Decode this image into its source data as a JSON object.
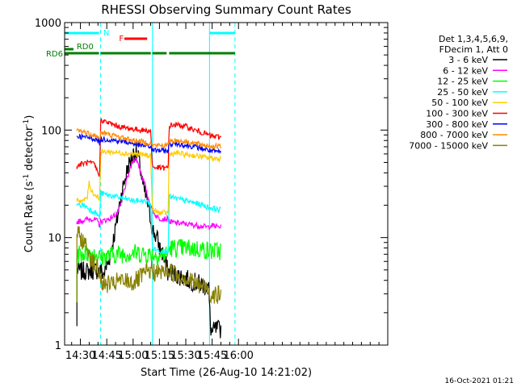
{
  "chart_data": {
    "type": "line",
    "title": "RHESSI Observing Summary Count Rates",
    "xlabel": "Start Time (26-Aug-10 14:21:02)",
    "ylabel": "Count Rate (s",
    "ylabel_sup": "-1",
    "ylabel_tail": " detector",
    "ylabel_tail_sup": "-1",
    "ylabel_close": ")",
    "yscale": "log",
    "ylim": [
      1,
      1000
    ],
    "y_ticks": [
      "1",
      "10",
      "100",
      "1000"
    ],
    "xlim_min": [
      21,
      205
    ],
    "x_ticks": [
      {
        "label": "14:30",
        "min": 30
      },
      {
        "label": "14:45",
        "min": 45
      },
      {
        "label": "15:00",
        "min": 60
      },
      {
        "label": "15:15",
        "min": 75
      },
      {
        "label": "15:30",
        "min": 90
      },
      {
        "label": "15:45",
        "min": 105
      },
      {
        "label": "16:00",
        "min": 120
      }
    ],
    "legend_header": [
      "Det 1,3,4,5,6,9,",
      "FDecim 1, Att 0"
    ],
    "legend_position": "right",
    "timestamp": "16-Oct-2021 01:21",
    "grid": false,
    "series": [
      {
        "name": "3 - 6 keV",
        "color": "#000000",
        "x": [
          28,
          31,
          33,
          34,
          36,
          38,
          40,
          41,
          41.5,
          43,
          46,
          49,
          51,
          53,
          55,
          57,
          59,
          60,
          61,
          62,
          63,
          64,
          65,
          66,
          68,
          69,
          70,
          71,
          72,
          74,
          75,
          76,
          77,
          78,
          79,
          80,
          80.5,
          84,
          88,
          92,
          96,
          100,
          103,
          104,
          105,
          107,
          110
        ],
        "y": [
          5,
          4.8,
          5,
          4.8,
          5,
          4.9,
          5,
          4.8,
          5,
          4.5,
          6,
          10,
          15,
          24,
          33,
          45,
          55,
          60,
          62,
          60,
          55,
          45,
          35,
          28,
          22,
          18,
          15,
          12,
          11,
          9.5,
          8,
          7.5,
          7,
          6,
          5.5,
          4.5,
          5,
          4.5,
          4.3,
          4,
          3.8,
          3.6,
          3.5,
          1.5,
          1.3,
          1.4,
          1.4
        ]
      },
      {
        "name": "6 - 12 keV",
        "color": "#ff00ff",
        "x": [
          28,
          32,
          36,
          39,
          40,
          41,
          41.5,
          44,
          47,
          49,
          51,
          53,
          54,
          56,
          58,
          60,
          61,
          62,
          63,
          65,
          67,
          68,
          70,
          71,
          72,
          73,
          74,
          75,
          80,
          80.5,
          88,
          96,
          103,
          104,
          110
        ],
        "y": [
          14,
          14.5,
          15,
          14.5,
          14,
          13,
          14,
          14.5,
          15,
          16,
          17,
          20,
          24,
          32,
          42,
          52,
          55,
          53,
          48,
          38,
          30,
          25,
          20,
          18,
          17,
          16,
          15.5,
          15,
          15,
          14,
          13.5,
          13,
          12.5,
          13,
          12.5
        ]
      },
      {
        "name": "12 - 25 keV",
        "color": "#00ff00",
        "x": [
          28,
          34,
          40,
          41,
          41.5,
          50,
          60,
          70,
          75,
          80,
          80.5,
          90,
          100,
          103,
          104,
          110
        ],
        "y": [
          7,
          7.2,
          7,
          6.5,
          6.5,
          7,
          7.2,
          7,
          6.8,
          7,
          8,
          8,
          7.8,
          7.5,
          7.5,
          7.5
        ]
      },
      {
        "name": "25 - 50 keV",
        "color": "#00ffff",
        "x": [
          28,
          32,
          34,
          36,
          39,
          40,
          41,
          41.5,
          45,
          50,
          55,
          60,
          65,
          70,
          71,
          75,
          80,
          80.5,
          85,
          90,
          95,
          100,
          103,
          104,
          110
        ],
        "y": [
          20,
          20,
          19,
          18,
          17,
          16,
          15,
          26,
          25,
          24,
          23,
          22,
          22,
          21,
          8,
          7.5,
          7.5,
          24,
          23,
          22,
          21,
          20,
          19,
          19,
          18
        ]
      },
      {
        "name": "50 - 100 keV",
        "color": "#ffcc00",
        "x": [
          28,
          30,
          32,
          34,
          35,
          36,
          38,
          40,
          41,
          41.5,
          45,
          50,
          55,
          60,
          65,
          70,
          71,
          75,
          80,
          80.5,
          85,
          90,
          95,
          100,
          103,
          104,
          110
        ],
        "y": [
          23,
          22,
          22,
          24,
          33,
          28,
          25,
          24,
          23,
          62,
          63,
          62,
          61,
          60,
          59,
          58,
          18,
          17,
          17,
          60,
          61,
          59,
          58,
          56,
          55,
          55,
          54
        ]
      },
      {
        "name": "100 - 300 keV",
        "color": "#ff0000",
        "x": [
          28,
          30,
          34,
          38,
          40,
          41,
          41.5,
          45,
          50,
          55,
          60,
          65,
          70,
          71,
          80,
          80.5,
          85,
          90,
          95,
          100,
          103,
          104,
          110
        ],
        "y": [
          46,
          48,
          50,
          48,
          40,
          38,
          125,
          118,
          110,
          105,
          102,
          100,
          98,
          45,
          44,
          110,
          112,
          108,
          100,
          94,
          90,
          88,
          86
        ]
      },
      {
        "name": "300 - 800 keV",
        "color": "#0000ff",
        "x": [
          28,
          30,
          34,
          38,
          40,
          41,
          41.5,
          45,
          50,
          55,
          60,
          65,
          70,
          71,
          80,
          80.5,
          85,
          90,
          95,
          100,
          103,
          104,
          110
        ],
        "y": [
          88,
          87,
          85,
          83,
          80,
          75,
          82,
          82,
          80,
          78,
          75,
          72,
          70,
          65,
          64,
          74,
          75,
          72,
          70,
          67,
          65,
          64,
          62
        ]
      },
      {
        "name": "800 - 7000 keV",
        "color": "#ff8800",
        "x": [
          28,
          30,
          34,
          38,
          40,
          41,
          41.5,
          45,
          50,
          55,
          60,
          65,
          70,
          71,
          80,
          80.5,
          85,
          90,
          95,
          100,
          103,
          104,
          110
        ],
        "y": [
          100,
          98,
          94,
          90,
          85,
          80,
          95,
          92,
          88,
          84,
          80,
          78,
          75,
          72,
          72,
          80,
          80,
          78,
          75,
          73,
          72,
          71,
          70
        ]
      },
      {
        "name": "7000 - 15000 keV",
        "color": "#888000",
        "x": [
          28,
          30,
          32,
          34,
          36,
          38,
          40,
          41,
          42,
          44,
          46,
          48,
          50,
          52,
          54,
          56,
          58,
          60,
          62,
          64,
          66,
          68,
          70,
          72,
          74,
          76,
          78,
          80,
          82,
          84,
          86,
          88,
          90,
          92,
          94,
          96,
          98,
          100,
          102,
          104,
          106,
          108,
          110
        ],
        "y": [
          11,
          10,
          9,
          8,
          6.5,
          5.5,
          5,
          4.5,
          4,
          3.5,
          3.8,
          3.5,
          3.8,
          4,
          3.8,
          4,
          3.9,
          3.8,
          4,
          4.2,
          4.5,
          4.8,
          5,
          4.8,
          4.6,
          4.8,
          5,
          4.9,
          4.8,
          4.6,
          4.5,
          4.4,
          4.2,
          4,
          3.8,
          3.7,
          3.5,
          3.5,
          3.4,
          3,
          3,
          2.9,
          2.9
        ]
      }
    ],
    "state_bars": [
      {
        "label": "N",
        "color": "#00ffff",
        "segments": [
          [
            21,
            41.5
          ],
          [
            103.5,
            118
          ]
        ]
      },
      {
        "label": "F",
        "color": "#ff0000",
        "segments": [
          [
            55,
            68
          ]
        ]
      },
      {
        "label": "RD0",
        "color": "#008000",
        "segments": [
          [
            21,
            26
          ]
        ]
      },
      {
        "label": "RD6",
        "color": "#008000",
        "segments": [
          [
            21,
            41.5
          ],
          [
            41.5,
            71
          ],
          [
            71,
            80
          ],
          [
            80.5,
            118
          ]
        ]
      }
    ],
    "vlines": [
      {
        "min": 21,
        "color": "#00ffff",
        "style": "solid"
      },
      {
        "min": 41.5,
        "color": "#00ffff",
        "style": "dashed"
      },
      {
        "min": 71,
        "color": "#00ffff",
        "style": "solid"
      },
      {
        "min": 103.5,
        "color": "#00ffff",
        "style": "solid"
      },
      {
        "min": 118,
        "color": "#00ffff",
        "style": "dashed"
      }
    ]
  }
}
